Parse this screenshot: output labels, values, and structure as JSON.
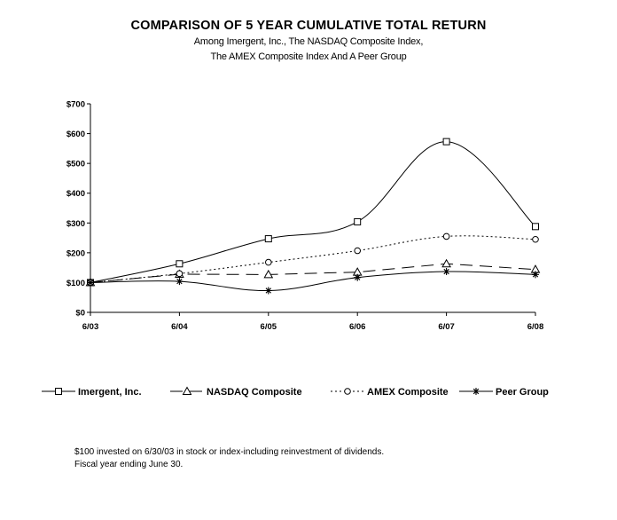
{
  "chart_data": {
    "type": "line",
    "title": "COMPARISON OF 5 YEAR CUMULATIVE TOTAL RETURN",
    "subtitle_lines": [
      "Among Imergent, Inc., The NASDAQ Composite Index,",
      "The AMEX Composite Index And A Peer Group"
    ],
    "categories": [
      "6/03",
      "6/04",
      "6/05",
      "6/06",
      "6/07",
      "6/08"
    ],
    "ylim": [
      0,
      700
    ],
    "yticks": [
      0,
      100,
      200,
      300,
      400,
      500,
      600,
      700
    ],
    "ytick_labels": [
      "$0",
      "$100",
      "$200",
      "$300",
      "$400",
      "$500",
      "$600",
      "$700"
    ],
    "grid": false,
    "legend_position": "bottom",
    "series": [
      {
        "name": "Imergent, Inc.",
        "values": [
          100,
          163,
          247,
          304,
          573,
          288
        ],
        "marker": "square",
        "dash": "solid",
        "curve": true
      },
      {
        "name": "NASDAQ Composite",
        "values": [
          100,
          128,
          127,
          135,
          163,
          144
        ],
        "marker": "triangle",
        "dash": "long-dash",
        "curve": false
      },
      {
        "name": "AMEX Composite",
        "values": [
          100,
          130,
          168,
          207,
          255,
          245
        ],
        "marker": "circle",
        "dash": "dotted",
        "curve": true
      },
      {
        "name": "Peer Group",
        "values": [
          100,
          104,
          73,
          117,
          137,
          127
        ],
        "marker": "star",
        "dash": "solid",
        "curve": true
      }
    ]
  },
  "footnotes": [
    "$100 invested on 6/30/03 in stock or index-including reinvestment of dividends.",
    "Fiscal year ending June 30."
  ]
}
